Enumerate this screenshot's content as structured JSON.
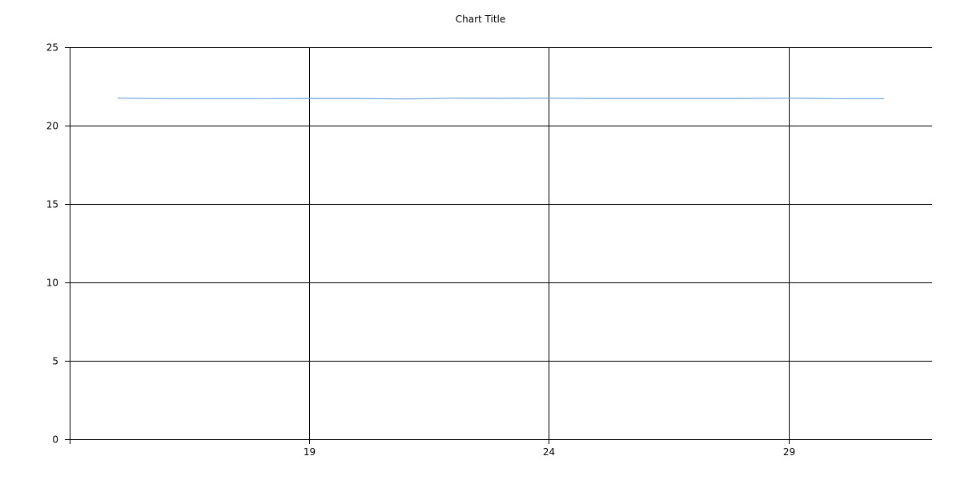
{
  "chart_data": {
    "type": "line",
    "title": "Chart Title",
    "xlabel": "",
    "ylabel": "",
    "xlim": [
      14,
      32
    ],
    "ylim": [
      0,
      25
    ],
    "x_ticks": [
      19,
      24,
      29
    ],
    "y_ticks": [
      0,
      5,
      10,
      15,
      20,
      25
    ],
    "grid": true,
    "legend": "none",
    "series": [
      {
        "color": "#6fa0dc",
        "x": [
          15,
          16,
          17,
          18,
          19,
          20,
          21,
          22,
          23,
          24,
          25,
          26,
          27,
          28,
          29,
          30,
          31
        ],
        "y": [
          21.75,
          21.72,
          21.72,
          21.72,
          21.73,
          21.73,
          21.7,
          21.75,
          21.74,
          21.75,
          21.73,
          21.73,
          21.73,
          21.73,
          21.75,
          21.72,
          21.72
        ]
      }
    ]
  },
  "colors": {
    "grid": "#000000",
    "axis": "#000000",
    "background": "#ffffff"
  }
}
